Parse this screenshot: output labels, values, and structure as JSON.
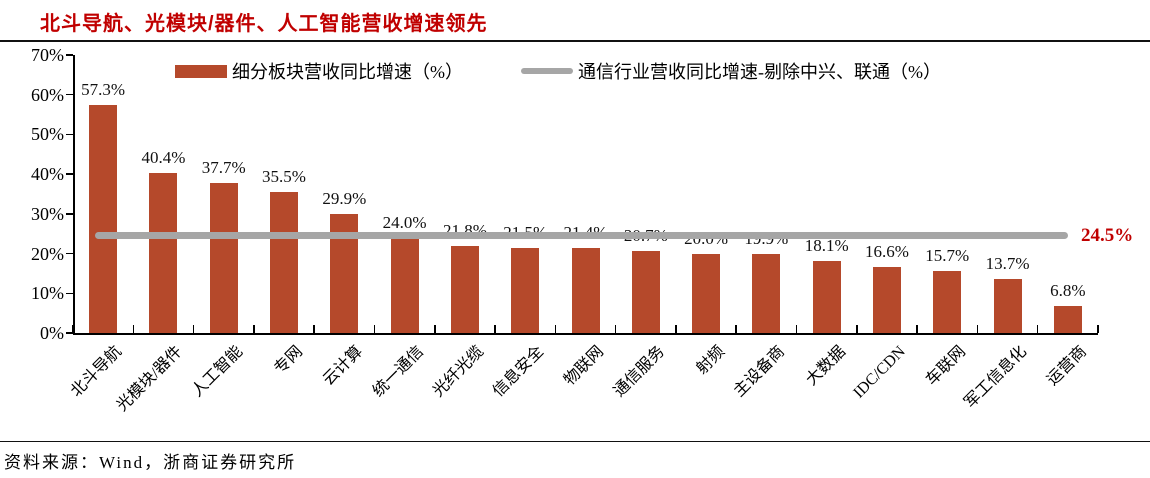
{
  "header": {
    "title": "北斗导航、光模块/器件、人工智能营收增速领先"
  },
  "legend": [
    {
      "label": "细分板块营收同比增速（%）",
      "swatch": "bar"
    },
    {
      "label": "通信行业营收同比增速-剔除中兴、联通（%）",
      "swatch": "line"
    }
  ],
  "chart_data": {
    "type": "bar",
    "title": "北斗导航、光模块/器件、人工智能营收增速领先",
    "categories": [
      "北斗导航",
      "光模块/器件",
      "人工智能",
      "专网",
      "云计算",
      "统一通信",
      "光纤光缆",
      "信息安全",
      "物联网",
      "通信服务",
      "射频",
      "主设备商",
      "大数据",
      "IDC/CDN",
      "车联网",
      "军工信息化",
      "运营商"
    ],
    "series": [
      {
        "name": "细分板块营收同比增速（%）",
        "type": "bar",
        "color": "#b5492b",
        "values": [
          57.3,
          40.4,
          37.7,
          35.5,
          29.9,
          24.0,
          21.8,
          21.5,
          21.4,
          20.7,
          20.0,
          19.9,
          18.1,
          16.6,
          15.7,
          13.7,
          6.8
        ],
        "value_labels": [
          "57.3%",
          "40.4%",
          "37.7%",
          "35.5%",
          "29.9%",
          "24.0%",
          "21.8%",
          "21.5%",
          "21.4%",
          "20.7%",
          "20.0%",
          "19.9%",
          "18.1%",
          "16.6%",
          "15.7%",
          "13.7%",
          "6.8%"
        ]
      },
      {
        "name": "通信行业营收同比增速-剔除中兴、联通（%）",
        "type": "line",
        "color": "#a6a6a6",
        "value": 24.5,
        "value_label": "24.5%"
      }
    ],
    "xlabel": "",
    "ylabel": "",
    "ylim": [
      0,
      70
    ],
    "y_tick_step": 10,
    "y_tick_labels": [
      "0%",
      "10%",
      "20%",
      "30%",
      "40%",
      "50%",
      "60%",
      "70%"
    ],
    "grid": false,
    "legend_position": "top"
  },
  "footer": {
    "source": "资料来源：Wind，浙商证券研究所"
  },
  "colors": {
    "bar": "#b5492b",
    "industry_line": "#a6a6a6",
    "accent_red": "#c00000",
    "text": "#000000"
  }
}
